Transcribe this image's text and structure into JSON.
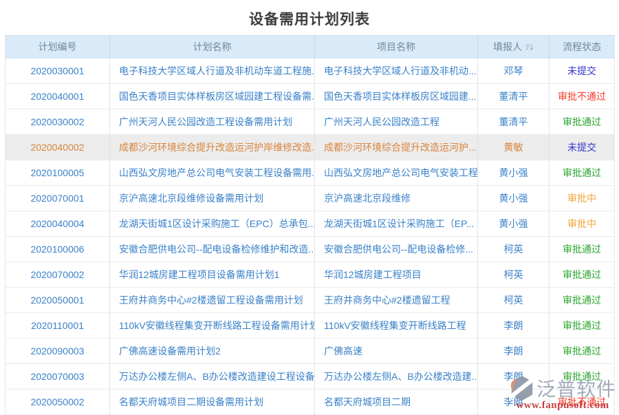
{
  "page": {
    "title": "设备需用计划列表"
  },
  "table": {
    "columns": [
      {
        "key": "plan_no",
        "label": "计划编号",
        "sortable": false
      },
      {
        "key": "plan_name",
        "label": "计划名称",
        "sortable": false
      },
      {
        "key": "project_name",
        "label": "项目名称",
        "sortable": false
      },
      {
        "key": "reporter",
        "label": "填报人",
        "sortable": true
      },
      {
        "key": "status",
        "label": "流程状态",
        "sortable": false
      }
    ],
    "rows": [
      {
        "plan_no": "2020030001",
        "plan_name": "电子科技大学区域人行道及非机动车道工程施...",
        "project_name": "电子科技大学区域人行道及非机动...",
        "reporter": "邓琴",
        "status": "未提交",
        "status_type": "not_submitted",
        "highlighted": false
      },
      {
        "plan_no": "2020040001",
        "plan_name": "国色天香项目实体样板房区域园建工程设备需...",
        "project_name": "国色天香项目实体样板房区域园建...",
        "reporter": "董清平",
        "status": "审批不通过",
        "status_type": "rejected",
        "highlighted": false
      },
      {
        "plan_no": "2020030002",
        "plan_name": "广州天河人民公园改造工程设备需用计划",
        "project_name": "广州天河人民公园改造工程",
        "reporter": "董清平",
        "status": "审批通过",
        "status_type": "approved",
        "highlighted": false
      },
      {
        "plan_no": "2020040002",
        "plan_name": "成都沙河环境综合提升改造运河护岸维修改造...",
        "project_name": "成都沙河环境综合提升改造运河护...",
        "reporter": "黄敏",
        "status": "未提交",
        "status_type": "not_submitted",
        "highlighted": true
      },
      {
        "plan_no": "2020100005",
        "plan_name": "山西弘文房地产总公司电气安装工程设备需用...",
        "project_name": "山西弘文房地产总公司电气安装工程",
        "reporter": "黄小强",
        "status": "审批通过",
        "status_type": "approved",
        "highlighted": false
      },
      {
        "plan_no": "2020070001",
        "plan_name": "京沪高速北京段维修设备需用计划",
        "project_name": "京沪高速北京段维修",
        "reporter": "黄小强",
        "status": "审批中",
        "status_type": "in_review",
        "highlighted": false
      },
      {
        "plan_no": "2020040004",
        "plan_name": "龙湖天街城1区设计采购施工（EPC）总承包...",
        "project_name": "龙湖天街城1区设计采购施工（EP...",
        "reporter": "黄小强",
        "status": "审批中",
        "status_type": "in_review",
        "highlighted": false
      },
      {
        "plan_no": "2020100006",
        "plan_name": "安徽合肥供电公司--配电设备检修维护和改造...",
        "project_name": "安徽合肥供电公司--配电设备检修...",
        "reporter": "柯英",
        "status": "审批通过",
        "status_type": "approved",
        "highlighted": false
      },
      {
        "plan_no": "2020070002",
        "plan_name": "华润12城房建工程项目设备需用计划1",
        "project_name": "华润12城房建工程项目",
        "reporter": "柯英",
        "status": "审批通过",
        "status_type": "approved",
        "highlighted": false
      },
      {
        "plan_no": "2020050001",
        "plan_name": "王府井商务中心#2楼遗留工程设备需用计划",
        "project_name": "王府井商务中心#2楼遗留工程",
        "reporter": "柯英",
        "status": "审批通过",
        "status_type": "approved",
        "highlighted": false
      },
      {
        "plan_no": "2020110001",
        "plan_name": "110kV安徽线程集变开断线路工程设备需用计划",
        "project_name": "110kV安徽线程集变开断线路工程",
        "reporter": "李朗",
        "status": "审批通过",
        "status_type": "approved",
        "highlighted": false
      },
      {
        "plan_no": "2020090003",
        "plan_name": "广佛高速设备需用计划2",
        "project_name": "广佛高速",
        "reporter": "李朗",
        "status": "审批通过",
        "status_type": "approved",
        "highlighted": false
      },
      {
        "plan_no": "2020070003",
        "plan_name": "万达办公楼左侧A、B办公楼改造建设工程设备...",
        "project_name": "万达办公楼左侧A、B办公楼改造建...",
        "reporter": "李朗",
        "status": "审批通过",
        "status_type": "approved",
        "highlighted": false
      },
      {
        "plan_no": "2020050002",
        "plan_name": "名都天府城项目二期设备需用计划",
        "project_name": "名都天府城项目二期",
        "reporter": "李朗",
        "status": "审批不通过",
        "status_type": "rejected",
        "highlighted": false
      }
    ]
  },
  "status_colors": {
    "not_submitted": "#3434cf",
    "rejected": "#f83b28",
    "approved": "#2aa62e",
    "in_review": "#f2a438"
  },
  "highlight": {
    "row_bg": "#ececec",
    "text_color": "#d9843a"
  },
  "watermark": {
    "brand": "泛普软件",
    "url": "www.fanpusoft.com"
  }
}
